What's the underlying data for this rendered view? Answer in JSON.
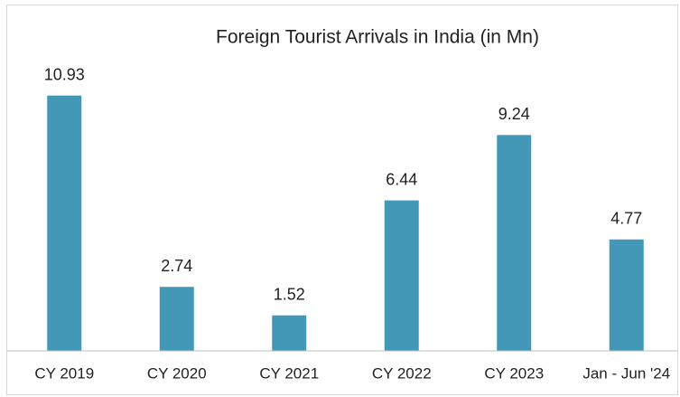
{
  "chart_data": {
    "type": "bar",
    "title": "Foreign Tourist Arrivals in India (in Mn)",
    "categories": [
      "CY 2019",
      "CY 2020",
      "CY 2021",
      "CY 2022",
      "CY 2023",
      "Jan - Jun '24"
    ],
    "values": [
      10.93,
      2.74,
      1.52,
      6.44,
      9.24,
      4.77
    ],
    "color": "#4398b8",
    "ylim": [
      0,
      12
    ]
  }
}
